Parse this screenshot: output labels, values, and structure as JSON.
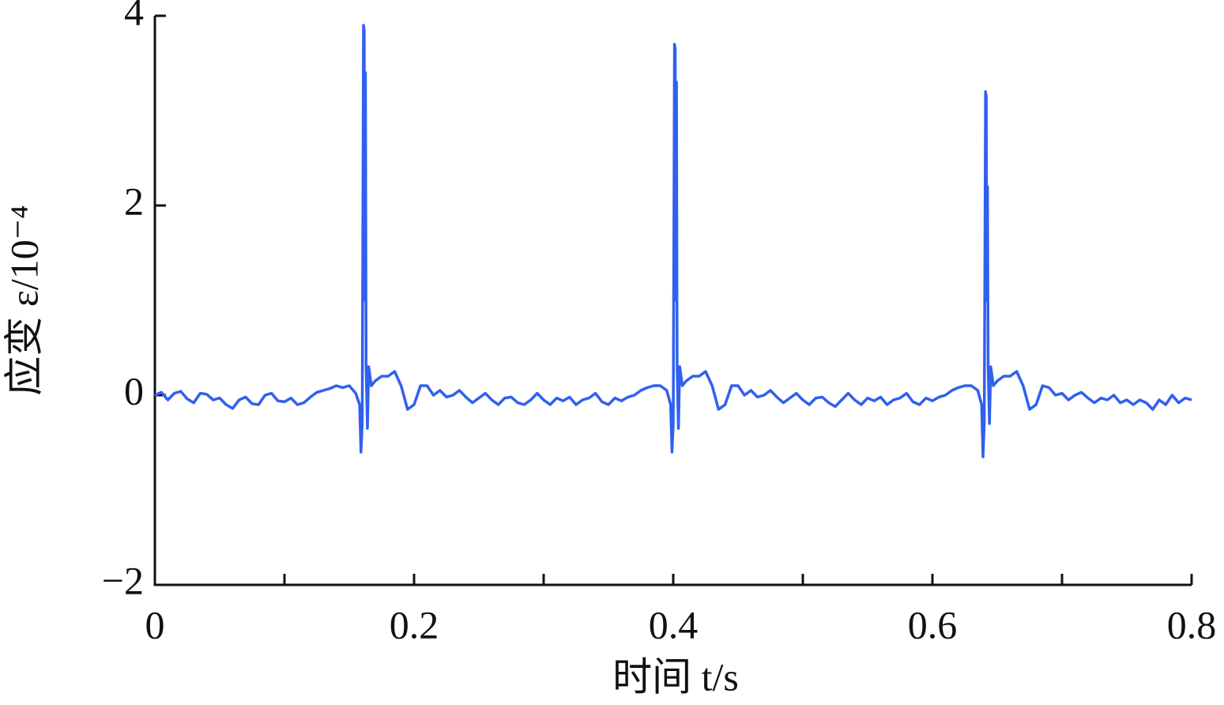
{
  "chart_data": {
    "type": "line",
    "xlabel": "时间 t/s",
    "ylabel": "应变 ε/10⁻⁴",
    "xlim": [
      0,
      0.8
    ],
    "ylim": [
      -2,
      4
    ],
    "xticks": [
      0,
      0.2,
      0.4,
      0.6,
      0.8
    ],
    "xminor_ticks": [
      0.1,
      0.3,
      0.5,
      0.7
    ],
    "yticks": [
      {
        "value": -2,
        "label": "−2"
      },
      0,
      2,
      4
    ],
    "series": [
      {
        "name": "应变",
        "color": "#3060ee",
        "x": [
          0,
          0.005,
          0.01,
          0.015,
          0.02,
          0.025,
          0.03,
          0.035,
          0.04,
          0.045,
          0.05,
          0.055,
          0.06,
          0.065,
          0.07,
          0.075,
          0.08,
          0.085,
          0.09,
          0.095,
          0.1,
          0.105,
          0.11,
          0.115,
          0.12,
          0.125,
          0.13,
          0.135,
          0.14,
          0.145,
          0.15,
          0.155,
          0.158,
          0.159,
          0.16,
          0.161,
          0.1615,
          0.162,
          0.1625,
          0.163,
          0.164,
          0.165,
          0.167,
          0.17,
          0.175,
          0.18,
          0.185,
          0.19,
          0.195,
          0.2,
          0.205,
          0.21,
          0.215,
          0.22,
          0.225,
          0.23,
          0.235,
          0.24,
          0.245,
          0.25,
          0.255,
          0.26,
          0.265,
          0.27,
          0.275,
          0.28,
          0.285,
          0.29,
          0.295,
          0.3,
          0.305,
          0.31,
          0.315,
          0.32,
          0.325,
          0.33,
          0.335,
          0.34,
          0.345,
          0.35,
          0.355,
          0.36,
          0.365,
          0.37,
          0.375,
          0.38,
          0.385,
          0.39,
          0.395,
          0.398,
          0.399,
          0.4,
          0.401,
          0.4015,
          0.402,
          0.4025,
          0.403,
          0.404,
          0.405,
          0.407,
          0.41,
          0.415,
          0.42,
          0.425,
          0.43,
          0.435,
          0.44,
          0.445,
          0.45,
          0.455,
          0.46,
          0.465,
          0.47,
          0.475,
          0.48,
          0.485,
          0.49,
          0.495,
          0.5,
          0.505,
          0.51,
          0.515,
          0.52,
          0.525,
          0.53,
          0.535,
          0.54,
          0.545,
          0.55,
          0.555,
          0.56,
          0.565,
          0.57,
          0.575,
          0.58,
          0.585,
          0.59,
          0.595,
          0.6,
          0.605,
          0.61,
          0.615,
          0.62,
          0.625,
          0.63,
          0.635,
          0.638,
          0.639,
          0.64,
          0.641,
          0.6415,
          0.642,
          0.6425,
          0.643,
          0.644,
          0.645,
          0.647,
          0.65,
          0.655,
          0.66,
          0.665,
          0.67,
          0.675,
          0.68,
          0.685,
          0.69,
          0.695,
          0.7,
          0.705,
          0.71,
          0.715,
          0.72,
          0.725,
          0.73,
          0.735,
          0.74,
          0.745,
          0.75,
          0.755,
          0.76,
          0.765,
          0.77,
          0.775,
          0.78,
          0.785,
          0.79,
          0.795,
          0.8
        ],
        "values": [
          0,
          0.03,
          -0.05,
          0.02,
          0.04,
          -0.04,
          -0.08,
          0.02,
          0.01,
          -0.05,
          -0.03,
          -0.1,
          -0.14,
          -0.05,
          -0.02,
          -0.09,
          -0.1,
          0,
          0.02,
          -0.06,
          -0.07,
          -0.03,
          -0.1,
          -0.08,
          -0.02,
          0.03,
          0.05,
          0.07,
          0.1,
          0.08,
          0.1,
          0.02,
          -0.1,
          -0.6,
          -0.3,
          3.9,
          3.85,
          1.0,
          3.4,
          0.3,
          -0.35,
          0.3,
          0.1,
          0.15,
          0.2,
          0.2,
          0.25,
          0.1,
          -0.15,
          -0.1,
          0.1,
          0.1,
          0,
          0.05,
          -0.02,
          0,
          0.05,
          -0.02,
          -0.08,
          -0.03,
          0.02,
          -0.05,
          -0.1,
          -0.03,
          -0.02,
          -0.08,
          -0.1,
          -0.05,
          0.02,
          -0.05,
          -0.1,
          -0.03,
          -0.06,
          -0.02,
          -0.1,
          -0.05,
          -0.03,
          0.02,
          -0.07,
          -0.1,
          -0.03,
          -0.06,
          -0.02,
          0,
          0.05,
          0.08,
          0.1,
          0.1,
          0.05,
          -0.1,
          -0.6,
          -0.3,
          3.7,
          3.65,
          1.0,
          3.3,
          0.3,
          -0.35,
          0.3,
          0.1,
          0.15,
          0.2,
          0.2,
          0.25,
          0.1,
          -0.15,
          -0.1,
          0.1,
          0.1,
          0,
          0.05,
          -0.02,
          0,
          0.05,
          -0.02,
          -0.08,
          -0.03,
          0.02,
          -0.05,
          -0.1,
          -0.03,
          -0.02,
          -0.08,
          -0.12,
          -0.05,
          0.02,
          -0.05,
          -0.1,
          -0.03,
          -0.06,
          -0.02,
          -0.1,
          -0.05,
          -0.03,
          0.02,
          -0.07,
          -0.1,
          -0.03,
          -0.06,
          -0.02,
          0,
          0.05,
          0.08,
          0.1,
          0.1,
          0.05,
          -0.1,
          -0.65,
          -0.3,
          3.2,
          3.15,
          1.0,
          2.2,
          0.3,
          -0.3,
          0.3,
          0.1,
          0.15,
          0.2,
          0.2,
          0.25,
          0.1,
          -0.15,
          -0.1,
          0.1,
          0.08,
          0,
          0.02,
          -0.05,
          0,
          0.03,
          -0.03,
          -0.08,
          -0.03,
          -0.05,
          0,
          -0.08,
          -0.05,
          -0.1,
          -0.05,
          -0.08,
          -0.15,
          -0.05,
          -0.1,
          0,
          -0.08,
          -0.03,
          -0.05
        ]
      }
    ]
  }
}
